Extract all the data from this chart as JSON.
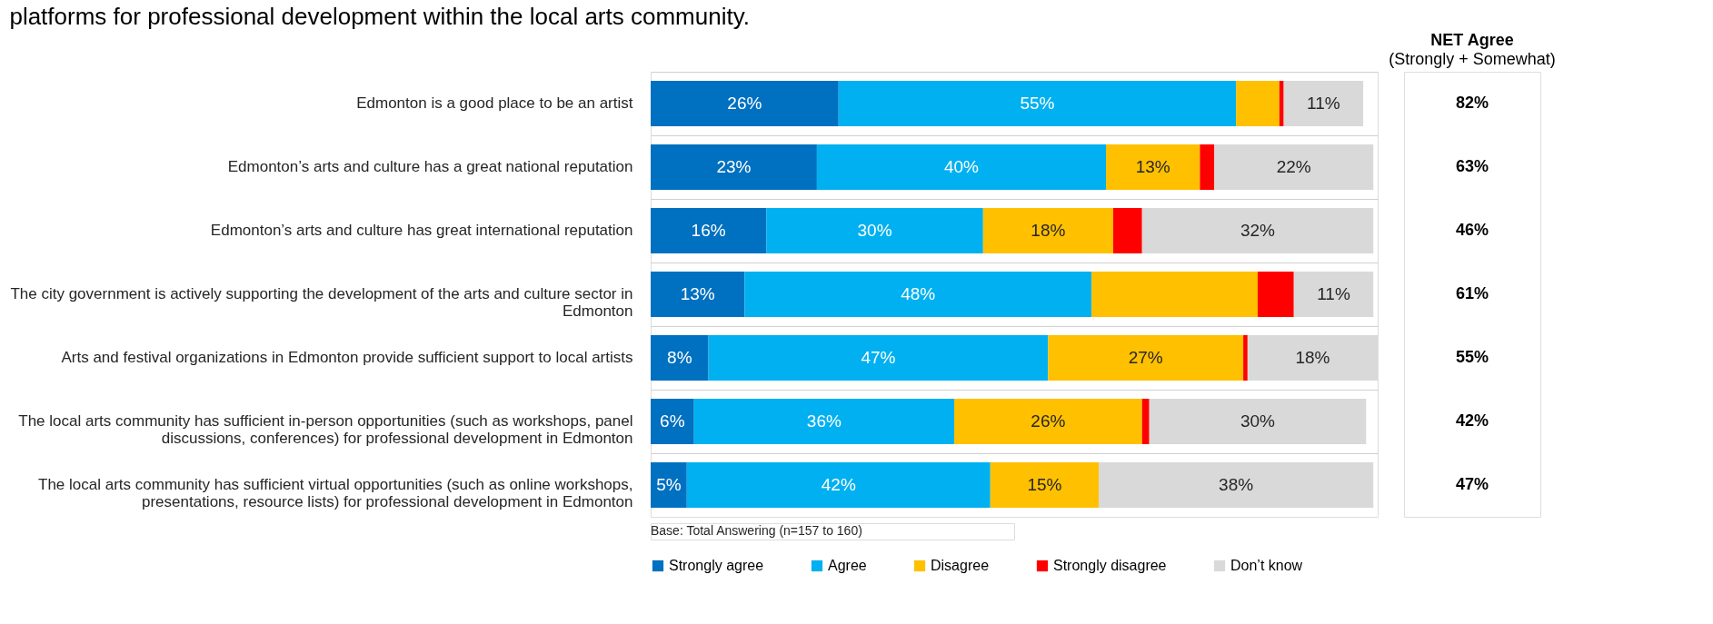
{
  "chart_data": {
    "type": "bar",
    "orientation": "horizontal",
    "stacked": true,
    "title": "platforms for professional development within the local arts community.",
    "categories": [
      "Edmonton is a good place to be an artist",
      "Edmonton’s arts and culture has a great national reputation",
      "Edmonton’s arts and culture has great international reputation",
      "The city government is actively supporting the development of the arts and culture sector in Edmonton",
      "Arts and festival organizations in Edmonton provide sufficient support to local artists",
      "The local arts community has sufficient in-person opportunities (such as workshops, panel discussions, conferences) for professional development in Edmonton",
      "The local arts community has sufficient virtual opportunities (such as online workshops, presentations, resource lists) for professional development in Edmonton"
    ],
    "series": [
      {
        "name": "Strongly agree",
        "color": "#0070c0",
        "values": [
          26,
          23,
          16,
          13,
          8,
          6,
          5
        ],
        "value_labels": [
          "26%",
          "23%",
          "16%",
          "13%",
          "8%",
          "6%",
          "5%"
        ]
      },
      {
        "name": "Agree",
        "color": "#00b0f0",
        "values": [
          55,
          40,
          30,
          48,
          47,
          36,
          42
        ],
        "value_labels": [
          "55%",
          "40%",
          "30%",
          "48%",
          "47%",
          "36%",
          "42%"
        ]
      },
      {
        "name": "Disagree",
        "color": "#ffc000",
        "values": [
          6,
          13,
          18,
          23,
          27,
          26,
          15
        ],
        "value_labels": [
          null,
          "13%",
          "18%",
          null,
          "27%",
          "26%",
          "15%"
        ]
      },
      {
        "name": "Strongly disagree",
        "color": "#ff0000",
        "values": [
          0.6,
          2,
          4,
          5,
          0.6,
          1,
          0
        ],
        "value_labels": [
          null,
          null,
          null,
          null,
          null,
          null,
          null
        ]
      },
      {
        "name": "Don’t know",
        "color": "#d9d9d9",
        "values": [
          11,
          22,
          32,
          11,
          18,
          30,
          38
        ],
        "value_labels": [
          "11%",
          "22%",
          "32%",
          "11%",
          "18%",
          "30%",
          "38%"
        ]
      }
    ],
    "annotations": [
      "NET Agree",
      "(Strongly + Somewhat)",
      "82%",
      "63%",
      "46%",
      "61%",
      "55%",
      "42%",
      "47%",
      "Base: Total Answering (n=157 to 160)"
    ],
    "legend": "bottom",
    "grid": "y"
  }
}
